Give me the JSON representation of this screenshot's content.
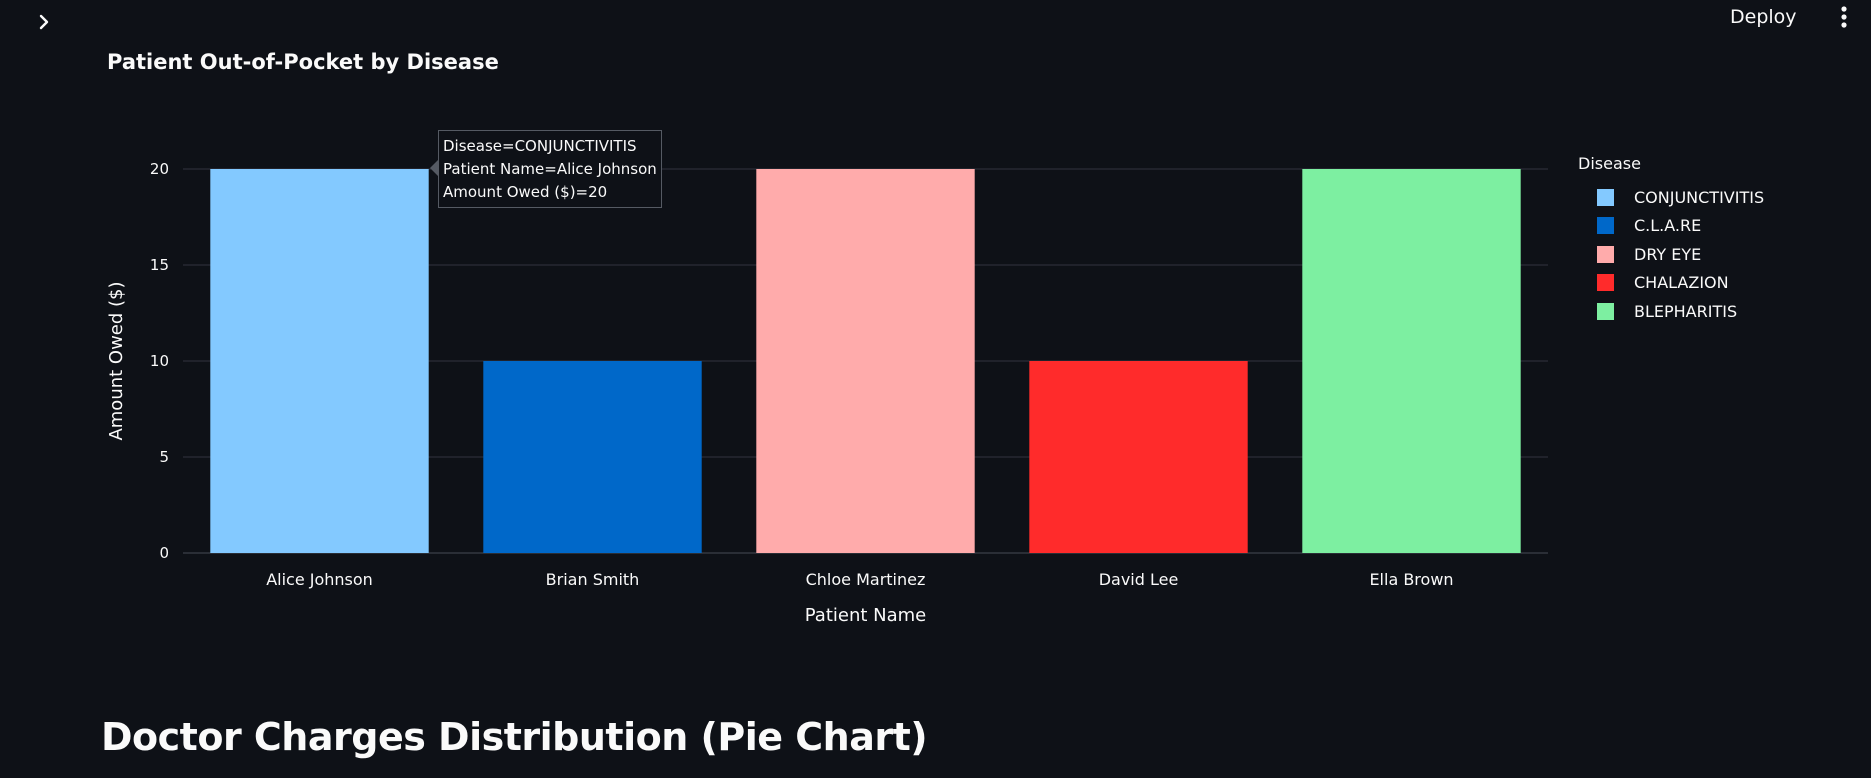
{
  "header": {
    "deploy_label": "Deploy"
  },
  "icons": {
    "sidebar_toggle": "chevron-right-icon",
    "main_menu": "vertical-ellipsis-icon"
  },
  "colors": {
    "background": "#0e1117",
    "text": "#fafafa",
    "grid": "#31333f"
  },
  "chart_data": {
    "type": "bar",
    "title": "Patient Out-of-Pocket by Disease",
    "xlabel": "Patient Name",
    "ylabel": "Amount Owed ($)",
    "ylim": [
      0,
      20
    ],
    "yticks": [
      0,
      5,
      10,
      15,
      20
    ],
    "grid": true,
    "legend_title": "Disease",
    "legend_position": "right",
    "categories": [
      "Alice Johnson",
      "Brian Smith",
      "Chloe Martinez",
      "David Lee",
      "Ella Brown"
    ],
    "series": [
      {
        "name": "CONJUNCTIVITIS",
        "color": "#83c9ff",
        "x": "Alice Johnson",
        "value": 20
      },
      {
        "name": "C.L.A.RE",
        "color": "#0068c9",
        "x": "Brian Smith",
        "value": 10
      },
      {
        "name": "DRY EYE",
        "color": "#ffabab",
        "x": "Chloe Martinez",
        "value": 20
      },
      {
        "name": "CHALAZION",
        "color": "#ff2b2b",
        "x": "David Lee",
        "value": 10
      },
      {
        "name": "BLEPHARITIS",
        "color": "#7defa1",
        "x": "Ella Brown",
        "value": 20
      }
    ],
    "tooltip": {
      "lines": [
        "Disease=CONJUNCTIVITIS",
        "Patient Name=Alice Johnson",
        "Amount Owed ($)=20"
      ]
    }
  },
  "sections": {
    "pie_heading": "Doctor Charges Distribution (Pie Chart)"
  }
}
